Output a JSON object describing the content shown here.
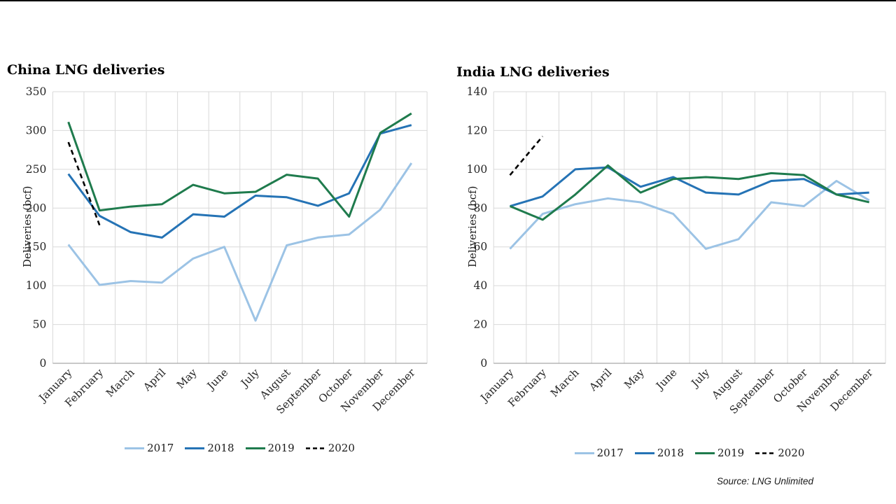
{
  "source_note": "Source: LNG Unlimited",
  "colors": {
    "grid": "#d9d9d9",
    "axis": "#a6a6a6",
    "tick_text": "#262626",
    "y2017": "#9cc3e5",
    "y2018": "#2573b5",
    "y2019": "#1f7b4d",
    "y2020": "#000000"
  },
  "chart_data": [
    {
      "type": "line",
      "title": "China LNG deliveries",
      "ylabel": "Deliveries (bcf)",
      "ylim": [
        0,
        350
      ],
      "ytick_interval": 50,
      "grid": true,
      "legend_position": "bottom",
      "categories": [
        "January",
        "February",
        "March",
        "April",
        "May",
        "June",
        "July",
        "August",
        "September",
        "October",
        "November",
        "December"
      ],
      "series": [
        {
          "name": "2017",
          "dash": "solid",
          "values": [
            153,
            101,
            106,
            104,
            135,
            150,
            55,
            152,
            162,
            166,
            198,
            258
          ]
        },
        {
          "name": "2018",
          "dash": "solid",
          "values": [
            244,
            190,
            169,
            162,
            192,
            189,
            216,
            214,
            203,
            219,
            296,
            307
          ]
        },
        {
          "name": "2019",
          "dash": "solid",
          "values": [
            311,
            197,
            202,
            205,
            230,
            219,
            221,
            243,
            238,
            189,
            297,
            322
          ]
        },
        {
          "name": "2020",
          "dash": "dashed",
          "values": [
            285,
            178
          ]
        }
      ]
    },
    {
      "type": "line",
      "title": "India LNG deliveries",
      "ylabel": "Deliveries (bcf)",
      "ylim": [
        0,
        140
      ],
      "ytick_interval": 20,
      "grid": true,
      "legend_position": "bottom",
      "categories": [
        "January",
        "February",
        "March",
        "April",
        "May",
        "June",
        "July",
        "August",
        "September",
        "October",
        "November",
        "December"
      ],
      "series": [
        {
          "name": "2017",
          "dash": "solid",
          "values": [
            59,
            77,
            82,
            85,
            83,
            77,
            59,
            64,
            83,
            81,
            94,
            84
          ]
        },
        {
          "name": "2018",
          "dash": "solid",
          "values": [
            81,
            86,
            100,
            101,
            91,
            96,
            88,
            87,
            94,
            95,
            87,
            88
          ]
        },
        {
          "name": "2019",
          "dash": "solid",
          "values": [
            81,
            74,
            87,
            102,
            88,
            95,
            96,
            95,
            98,
            97,
            87,
            83
          ]
        },
        {
          "name": "2020",
          "dash": "dashed",
          "values": [
            97,
            117
          ]
        }
      ]
    }
  ]
}
